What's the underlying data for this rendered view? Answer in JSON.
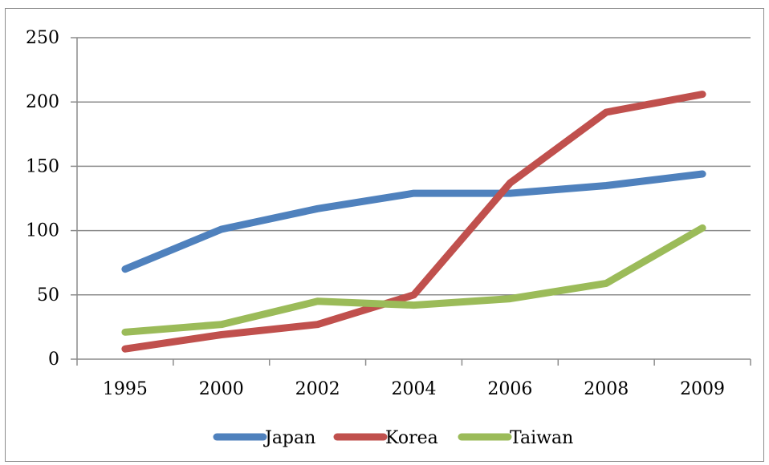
{
  "chart_data": {
    "type": "line",
    "title": "",
    "xlabel": "",
    "ylabel": "",
    "categories": [
      "1995",
      "2000",
      "2002",
      "2004",
      "2006",
      "2008",
      "2009"
    ],
    "ylim": [
      0,
      250
    ],
    "yticks": [
      0,
      50,
      100,
      150,
      200,
      250
    ],
    "grid": true,
    "legend": "bottom",
    "series": [
      {
        "name": "Japan",
        "color": "#4f81bd",
        "values": [
          70,
          101,
          117,
          129,
          129,
          135,
          144
        ]
      },
      {
        "name": "Korea",
        "color": "#c0504d",
        "values": [
          8,
          19,
          27,
          50,
          137,
          192,
          206
        ]
      },
      {
        "name": "Taiwan",
        "color": "#9bbb59",
        "values": [
          21,
          27,
          45,
          42,
          47,
          59,
          102
        ]
      }
    ]
  }
}
